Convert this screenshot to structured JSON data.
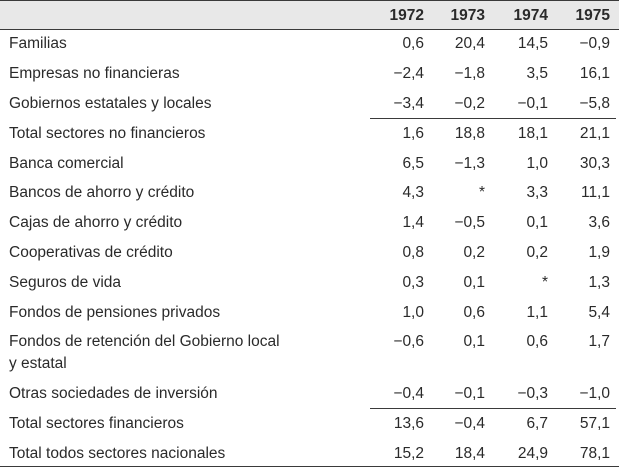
{
  "table": {
    "years": [
      "1972",
      "1973",
      "1974",
      "1975"
    ],
    "rows": [
      {
        "label": "Familias",
        "values": [
          "0,6",
          "20,4",
          "14,5",
          "−0,9"
        ]
      },
      {
        "label": "Empresas no financieras",
        "values": [
          "−2,4",
          "−1,8",
          "3,5",
          "16,1"
        ]
      },
      {
        "label": "Gobiernos estatales y locales",
        "values": [
          "−3,4",
          "−0,2",
          "−0,1",
          "−5,8"
        ]
      },
      {
        "label": "Total sectores no financieros",
        "values": [
          "1,6",
          "18,8",
          "18,1",
          "21,1"
        ]
      },
      {
        "label": "Banca comercial",
        "values": [
          "6,5",
          "−1,3",
          "1,0",
          "30,3"
        ]
      },
      {
        "label": "Bancos de ahorro y crédito",
        "values": [
          "4,3",
          "*",
          "3,3",
          "11,1"
        ]
      },
      {
        "label": "Cajas de ahorro y crédito",
        "values": [
          "1,4",
          "−0,5",
          "0,1",
          "3,6"
        ]
      },
      {
        "label": "Cooperativas de crédito",
        "values": [
          "0,8",
          "0,2",
          "0,2",
          "1,9"
        ]
      },
      {
        "label": "Seguros de vida",
        "values": [
          "0,3",
          "0,1",
          "*",
          "1,3"
        ]
      },
      {
        "label": "Fondos de pensiones privados",
        "values": [
          "1,0",
          "0,6",
          "1,1",
          "5,4"
        ]
      },
      {
        "label": "Fondos de retención del Gobierno local",
        "label2": "y estatal",
        "values": [
          "−0,6",
          "0,1",
          "0,6",
          "1,7"
        ]
      },
      {
        "label": "Otras sociedades de inversión",
        "values": [
          "−0,4",
          "−0,1",
          "−0,3",
          "−1,0"
        ]
      },
      {
        "label": "Total sectores financieros",
        "values": [
          "13,6",
          "−0,4",
          "6,7",
          "57,1"
        ]
      },
      {
        "label": "Total todos sectores nacionales",
        "values": [
          "15,2",
          "18,4",
          "24,9",
          "78,1"
        ]
      }
    ]
  }
}
